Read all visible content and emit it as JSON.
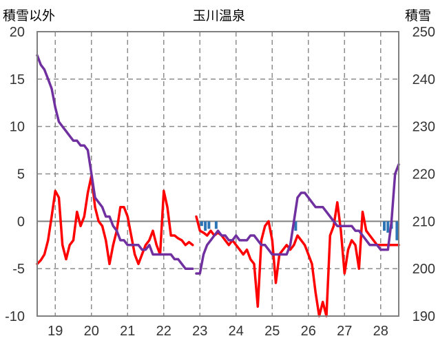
{
  "chart_data": {
    "type": "line",
    "title": "玉川温泉",
    "ylabel_left": "積雪以外",
    "ylabel_right": "積雪",
    "ylim_left": [
      -10,
      20
    ],
    "yticks_left": [
      "20",
      "15",
      "10",
      "5",
      "0",
      "-5",
      "-10"
    ],
    "ylim_right": [
      190,
      250
    ],
    "yticks_right": [
      "250",
      "240",
      "230",
      "220",
      "210",
      "200",
      "190"
    ],
    "xlim": [
      18.5,
      28.5
    ],
    "xticks": [
      "19",
      "20",
      "21",
      "22",
      "23",
      "24",
      "25",
      "26",
      "27",
      "28"
    ],
    "grid": true,
    "colors": {
      "temperature": "#ff0000",
      "snow_depth": "#7030a0",
      "precipitation": "#2e75b6"
    },
    "series": [
      {
        "axis": "left",
        "style": "line",
        "color": "#ff0000",
        "segments": [
          {
            "x": [
              18.5,
              18.6,
              18.7,
              18.8,
              18.9,
              19.0,
              19.1,
              19.2,
              19.3,
              19.4,
              19.5,
              19.6,
              19.7,
              19.8,
              19.9,
              20.0,
              20.1,
              20.2,
              20.3,
              20.4,
              20.5,
              20.6,
              20.7,
              20.8,
              20.9,
              21.0,
              21.1,
              21.2,
              21.3,
              21.4,
              21.5,
              21.6,
              21.7,
              21.8,
              21.9,
              22.0,
              22.1,
              22.2,
              22.3,
              22.4,
              22.5,
              22.6,
              22.7,
              22.8
            ],
            "y": [
              -4.5,
              -4.1,
              -3.5,
              -2.0,
              0.5,
              3.2,
              2.5,
              -2.5,
              -4.0,
              -2.5,
              -2.0,
              1.0,
              -0.5,
              0.5,
              3.0,
              4.8,
              1.5,
              0.0,
              -0.5,
              -2.0,
              -4.5,
              -2.5,
              -1.0,
              1.5,
              1.5,
              0.5,
              -1.5,
              -3.5,
              -4.5,
              -3.5,
              -2.5,
              -2.0,
              -1.0,
              -2.5,
              -3.5,
              3.2,
              1.5,
              -1.5,
              -1.5,
              -1.8,
              -2.0,
              -2.5,
              -2.2,
              -2.5
            ]
          },
          {
            "x": [
              22.9,
              23.0,
              23.1,
              23.2,
              23.3,
              23.4,
              23.5,
              23.6,
              23.7,
              23.8,
              23.9,
              24.0,
              24.1,
              24.2,
              24.3,
              24.4,
              24.5,
              24.6,
              24.7,
              24.8,
              24.9,
              25.0,
              25.1,
              25.2,
              25.3,
              25.4,
              25.5,
              25.6,
              25.7,
              25.8,
              25.9,
              26.0,
              26.1,
              26.2,
              26.3,
              26.4,
              26.5,
              26.6,
              26.7,
              26.8,
              26.9,
              27.0,
              27.1,
              27.2,
              27.3,
              27.4,
              27.5,
              27.6,
              27.7,
              27.8,
              27.9,
              28.0,
              28.1,
              28.2,
              28.3,
              28.4,
              28.5
            ],
            "y": [
              0.5,
              -1.0,
              -1.2,
              -1.5,
              -1.0,
              -1.5,
              -1.2,
              -1.5,
              -2.0,
              -2.5,
              -2.0,
              -2.5,
              -3.0,
              -3.5,
              -3.0,
              -4.0,
              -4.5,
              -9.0,
              -2.0,
              -0.5,
              0.0,
              -2.0,
              -6.5,
              -3.5,
              -3.0,
              -2.5,
              -3.0,
              -2.5,
              -1.5,
              -2.0,
              -2.5,
              -3.5,
              -4.5,
              -7.5,
              -10.0,
              -8.5,
              -10.0,
              -1.5,
              -0.5,
              2.0,
              -1.0,
              -5.5,
              -3.0,
              -2.0,
              -2.5,
              -5.0,
              1.0,
              -1.0,
              -1.5,
              -2.0,
              -2.5,
              -2.5,
              -2.5,
              -2.5,
              -2.5,
              -2.5,
              -2.5
            ]
          }
        ]
      },
      {
        "axis": "right",
        "style": "line",
        "color": "#7030a0",
        "segments": [
          {
            "x": [
              18.5,
              18.6,
              18.7,
              18.8,
              18.9,
              19.0,
              19.1,
              19.2,
              19.3,
              19.4,
              19.5,
              19.6,
              19.7,
              19.8,
              19.9,
              20.0,
              20.1,
              20.2,
              20.3,
              20.4,
              20.5,
              20.6,
              20.7,
              20.8,
              20.9,
              21.0,
              21.1,
              21.2,
              21.3,
              21.4,
              21.5,
              21.6,
              21.7,
              21.8,
              21.9,
              22.0,
              22.1,
              22.2,
              22.3,
              22.4,
              22.5,
              22.6,
              22.7,
              22.8
            ],
            "y": [
              245,
              243,
              242,
              240,
              238,
              234,
              231,
              230,
              229,
              228,
              227,
              227,
              226,
              226,
              225,
              220,
              215,
              214,
              213,
              211,
              211,
              209,
              208,
              206,
              206,
              205,
              205,
              205,
              205,
              204,
              204,
              205,
              203,
              203,
              203,
              203,
              203,
              203,
              202,
              202,
              201,
              200,
              200,
              200
            ]
          },
          {
            "x": [
              22.9,
              23.0,
              23.1,
              23.2,
              23.3,
              23.4,
              23.5,
              23.6,
              23.7,
              23.8,
              23.9,
              24.0,
              24.1,
              24.2,
              24.3,
              24.4,
              24.5,
              24.6,
              24.7,
              24.8,
              24.9,
              25.0,
              25.1,
              25.2,
              25.3,
              25.4,
              25.5,
              25.6,
              25.7,
              25.8,
              25.9,
              26.0,
              26.1,
              26.2,
              26.3,
              26.4,
              26.5,
              26.6,
              26.7,
              26.8,
              26.9,
              27.0,
              27.1,
              27.2,
              27.3,
              27.4,
              27.5,
              27.6,
              27.7,
              27.8,
              27.9,
              28.0,
              28.1,
              28.2,
              28.3,
              28.4,
              28.5
            ],
            "y": [
              199,
              199,
              203,
              205,
              206,
              207,
              208,
              207,
              207,
              206,
              206,
              207,
              206,
              206,
              206,
              207,
              207,
              206,
              205,
              205,
              204,
              203,
              203,
              203,
              203,
              203,
              205,
              210,
              215,
              216,
              216,
              215,
              214,
              213,
              213,
              213,
              212,
              211,
              210,
              209,
              209,
              209,
              209,
              209,
              208,
              208,
              207,
              206,
              205,
              205,
              205,
              204,
              204,
              204,
              210,
              220,
              222
            ]
          }
        ]
      },
      {
        "axis": "left",
        "style": "bar",
        "color": "#2e75b6",
        "x": [
          23.05,
          23.15,
          23.25,
          23.45,
          25.65,
          28.1,
          28.2,
          28.3,
          28.45
        ],
        "y": [
          -0.5,
          -1.0,
          -0.8,
          -0.8,
          -1.0,
          -1.0,
          -1.2,
          -0.8,
          -2.0
        ]
      }
    ]
  }
}
